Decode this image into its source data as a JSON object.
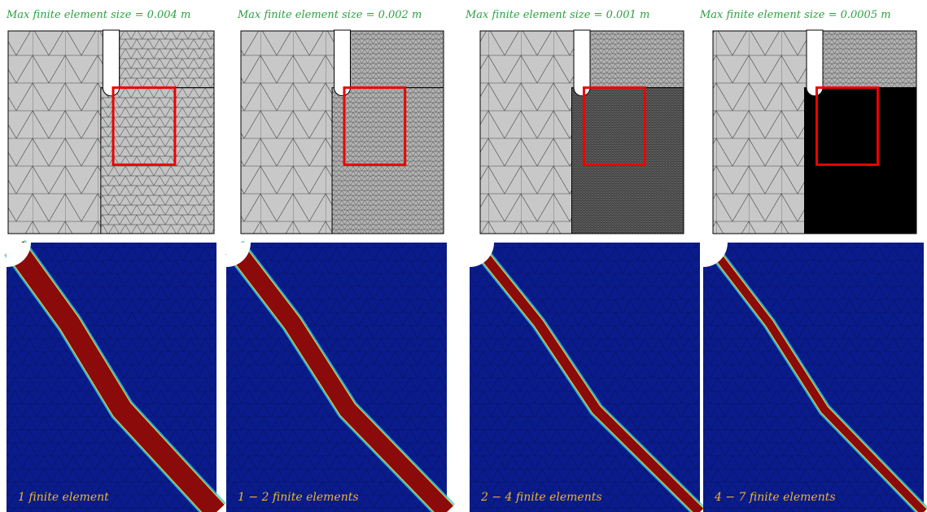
{
  "panels": [
    {
      "title": "Max finite element size = 0.004 m",
      "caption": "1 finite element"
    },
    {
      "title": "Max finite element size = 0.002 m",
      "caption": "1 − 2 finite elements"
    },
    {
      "title": "Max finite element size = 0.001 m",
      "caption": "2 − 4 finite elements"
    },
    {
      "title": "Max finite element size = 0.0005 m",
      "caption": "4 − 7 finite elements"
    }
  ]
}
